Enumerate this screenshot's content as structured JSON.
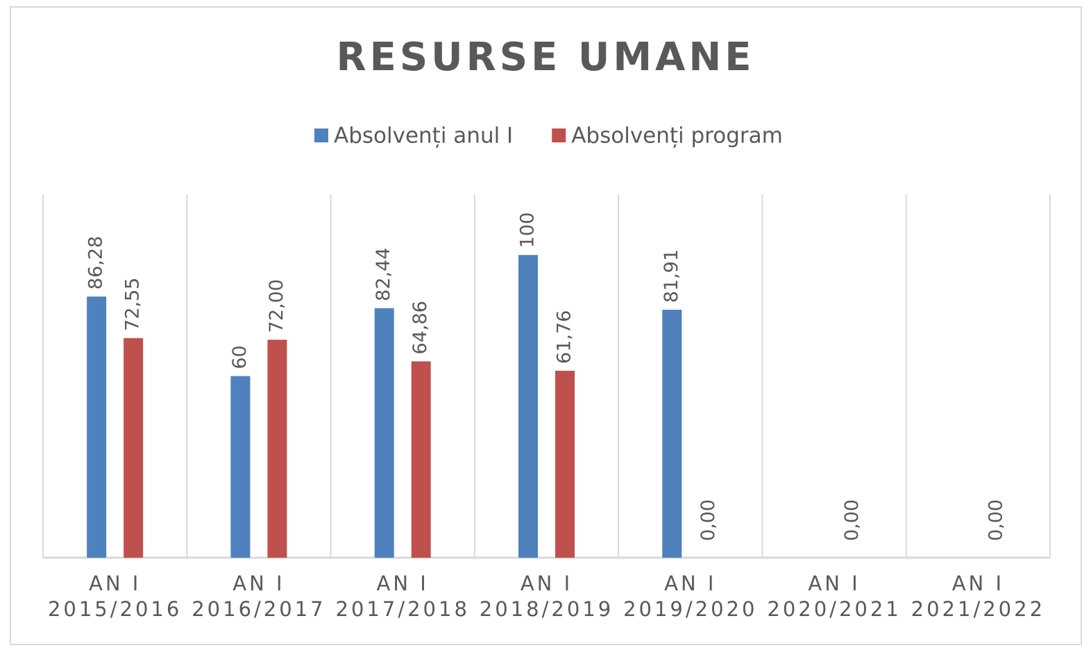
{
  "chart_data": {
    "type": "bar",
    "title": "RESURSE UMANE",
    "categories": [
      "AN I\n2015/2016",
      "AN I\n2016/2017",
      "AN I\n2017/2018",
      "AN I\n2018/2019",
      "AN I\n2019/2020",
      "AN I\n2020/2021",
      "AN I\n2021/2022"
    ],
    "series": [
      {
        "name": "Absolvenți anul I",
        "color": "#4f81bd",
        "values": [
          86.28,
          60,
          82.44,
          100,
          81.91,
          null,
          null
        ],
        "value_labels": [
          "86,28",
          "60",
          "82,44",
          "100",
          "81,91",
          null,
          null
        ]
      },
      {
        "name": "Absolvenți program",
        "color": "#c0504d",
        "values": [
          72.55,
          72.0,
          64.86,
          61.76,
          0.0,
          0.0,
          0.0
        ],
        "value_labels": [
          "72,55",
          "72,00",
          "64,86",
          "61,76",
          "0,00",
          "0,00",
          "0,00"
        ]
      }
    ],
    "ylim": [
      0,
      120
    ],
    "legend": "top"
  }
}
